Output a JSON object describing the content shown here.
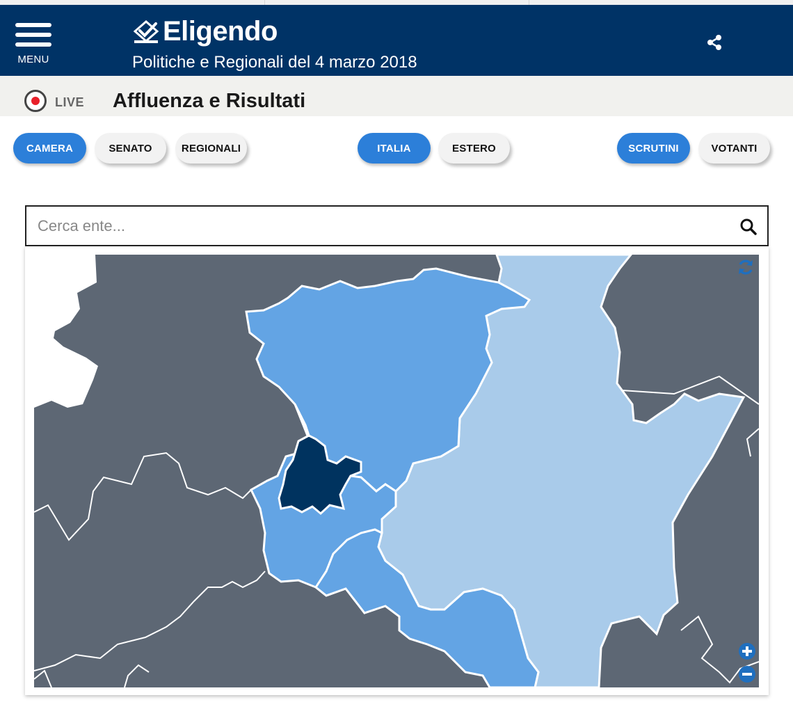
{
  "header": {
    "menu_label": "MENU",
    "brand": "Eligendo",
    "subtitle": "Politiche e Regionali del 4 marzo 2018"
  },
  "status": {
    "live_label": "LIVE",
    "title": "Affluenza e Risultati"
  },
  "tabs": {
    "chamber": [
      {
        "label": "CAMERA",
        "active": true
      },
      {
        "label": "SENATO",
        "active": false
      },
      {
        "label": "REGIONALI",
        "active": false
      }
    ],
    "area": [
      {
        "label": "ITALIA",
        "active": true
      },
      {
        "label": "ESTERO",
        "active": false
      }
    ],
    "view": [
      {
        "label": "SCRUTINI",
        "active": true
      },
      {
        "label": "VOTANTI",
        "active": false
      }
    ]
  },
  "search": {
    "placeholder": "Cerca ente..."
  },
  "map": {
    "icons": [
      "refresh-icon",
      "zoom-in-icon",
      "zoom-out-icon",
      "search-icon",
      "share-icon"
    ],
    "colors": {
      "background_regions": "#5d6774",
      "province_medium": "#63a4e4",
      "province_light": "#a9cbea",
      "province_selected": "#00335f",
      "header": "#003366",
      "accent": "#2c7fd9"
    }
  }
}
